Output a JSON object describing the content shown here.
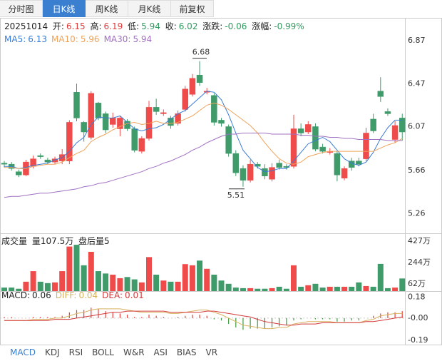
{
  "tabs": [
    {
      "label": "分时图"
    },
    {
      "label": "日K线",
      "selected": true
    },
    {
      "label": "周K线"
    },
    {
      "label": "月K线"
    },
    {
      "label": "前复权"
    }
  ],
  "indicator_tabs": [
    {
      "label": "MACD",
      "selected": true
    },
    {
      "label": "KDJ"
    },
    {
      "label": "RSI"
    },
    {
      "label": "BOLL"
    },
    {
      "label": "W&R"
    },
    {
      "label": "ASI"
    },
    {
      "label": "BIAS"
    },
    {
      "label": "VR"
    }
  ],
  "chart_data": [
    {
      "type": "candlestick",
      "date": "20251014",
      "info_labels": [
        "开:",
        "高:",
        "低:",
        "收:",
        "涨跌:",
        "涨幅:"
      ],
      "change": -0.06,
      "change_pct": {
        "value": -0.99,
        "label": "-0.99%"
      },
      "up_color": "#f04b4b",
      "down_color": "#3f9b6a",
      "categories": [
        null,
        null,
        null,
        null,
        null,
        null,
        null,
        null,
        null,
        null,
        null,
        null,
        null,
        null,
        null,
        null,
        null,
        null,
        null,
        null,
        null,
        null,
        null,
        null,
        null,
        null,
        null,
        null,
        null,
        null,
        null,
        null,
        null,
        null,
        null,
        null,
        null,
        null,
        null,
        null,
        null,
        null,
        null,
        null,
        null,
        null,
        null,
        null,
        null,
        null,
        null,
        null,
        null,
        null,
        null,
        null
      ],
      "open": [
        5.73,
        5.72,
        5.65,
        5.62,
        5.7,
        5.8,
        5.76,
        5.74,
        5.75,
        5.75,
        6.39,
        6.11,
        5.97,
        6.29,
        6.19,
        6.09,
        6.05,
        6.12,
        6.05,
        5.84,
        5.96,
        6.25,
        6.19,
        6.15,
        6.1,
        6.23,
        6.37,
        6.55,
        6.39,
        6.36,
        6.13,
        6.07,
        5.82,
        5.68,
        5.57,
        5.72,
        5.68,
        5.58,
        5.73,
        5.7,
        5.7,
        6.05,
        6.02,
        6.07,
        5.88,
        5.83,
        5.82,
        5.59,
        5.75,
        5.75,
        5.77,
        6.14,
        6.4,
        6.21,
        5.95,
        6.15
      ],
      "high": [
        5.75,
        5.74,
        5.67,
        5.76,
        5.8,
        5.82,
        5.78,
        5.79,
        5.86,
        6.13,
        6.47,
        6.12,
        6.4,
        6.3,
        6.21,
        6.2,
        6.17,
        6.14,
        6.07,
        5.98,
        6.31,
        6.33,
        6.23,
        6.17,
        6.22,
        6.45,
        6.56,
        6.68,
        6.43,
        6.38,
        6.15,
        6.09,
        5.85,
        5.71,
        5.76,
        5.74,
        5.72,
        5.73,
        5.76,
        5.72,
        6.18,
        6.1,
        6.12,
        6.1,
        5.91,
        5.87,
        5.84,
        5.7,
        5.78,
        5.78,
        6.06,
        6.19,
        6.53,
        6.24,
        6.12,
        6.19
      ],
      "low": [
        5.69,
        5.66,
        5.6,
        5.61,
        5.68,
        5.77,
        5.72,
        5.72,
        5.72,
        5.72,
        6.12,
        5.93,
        5.95,
        6.13,
        6.01,
        6.06,
        5.98,
        6.03,
        5.83,
        5.82,
        5.94,
        6.18,
        6.17,
        6.05,
        6.08,
        6.21,
        6.35,
        6.45,
        6.37,
        6.08,
        6.07,
        5.79,
        5.61,
        5.51,
        5.55,
        5.68,
        5.58,
        5.56,
        5.67,
        5.67,
        5.68,
        5.98,
        6.0,
        5.84,
        5.82,
        5.81,
        5.56,
        5.57,
        5.66,
        5.7,
        5.75,
        6.01,
        6.3,
        6.17,
        5.92,
        5.94
      ],
      "close": [
        5.72,
        5.68,
        5.62,
        5.74,
        5.77,
        5.79,
        5.74,
        5.77,
        5.81,
        6.11,
        6.15,
        6.02,
        6.38,
        6.15,
        6.04,
        6.15,
        6.15,
        6.05,
        5.85,
        5.96,
        6.25,
        6.21,
        6.2,
        6.08,
        6.19,
        6.42,
        6.52,
        6.48,
        6.4,
        6.11,
        6.1,
        5.82,
        5.64,
        5.57,
        5.72,
        5.7,
        5.61,
        5.69,
        5.69,
        5.69,
        6.05,
        6.01,
        6.09,
        5.86,
        5.84,
        5.84,
        5.62,
        5.68,
        5.69,
        5.72,
        6.01,
        6.03,
        6.35,
        6.19,
        6.08,
        6.02
      ],
      "series": [
        {
          "name": "MA5:",
          "color": "#3a7bd5",
          "values": [
            5.7,
            5.7,
            5.68,
            5.69,
            5.71,
            5.72,
            5.73,
            5.76,
            5.78,
            5.84,
            5.92,
            5.97,
            6.09,
            6.16,
            6.15,
            6.15,
            6.17,
            6.11,
            6.05,
            6.03,
            6.05,
            6.06,
            6.09,
            6.14,
            6.19,
            6.22,
            6.28,
            6.34,
            6.4,
            6.39,
            6.32,
            6.18,
            6.01,
            5.85,
            5.77,
            5.69,
            5.65,
            5.66,
            5.68,
            5.68,
            5.75,
            5.83,
            5.91,
            5.94,
            5.97,
            5.93,
            5.85,
            5.77,
            5.73,
            5.71,
            5.74,
            5.83,
            5.96,
            6.06,
            6.13,
            6.13
          ]
        },
        {
          "name": "MA10:",
          "color": "#efa35a",
          "values": [
            5.69,
            5.69,
            5.68,
            5.68,
            5.7,
            5.71,
            5.72,
            5.72,
            5.74,
            5.78,
            5.82,
            5.85,
            5.93,
            5.97,
            6.0,
            6.04,
            6.07,
            6.1,
            6.11,
            6.09,
            6.1,
            6.12,
            6.1,
            6.1,
            6.11,
            6.14,
            6.17,
            6.22,
            6.27,
            6.29,
            6.27,
            6.23,
            6.18,
            6.13,
            6.08,
            6.01,
            5.92,
            5.84,
            5.77,
            5.73,
            5.72,
            5.74,
            5.79,
            5.81,
            5.83,
            5.84,
            5.84,
            5.84,
            5.84,
            5.84,
            5.84,
            5.84,
            5.87,
            5.9,
            5.92,
            5.96
          ]
        },
        {
          "name": "MA30:",
          "color": "#a070c2",
          "values": [
            5.41,
            5.42,
            5.42,
            5.43,
            5.44,
            5.45,
            5.45,
            5.46,
            5.47,
            5.48,
            5.49,
            5.51,
            5.52,
            5.54,
            5.55,
            5.57,
            5.59,
            5.61,
            5.63,
            5.65,
            5.68,
            5.7,
            5.73,
            5.75,
            5.78,
            5.81,
            5.85,
            5.88,
            5.92,
            5.95,
            5.98,
            6.0,
            6.0,
            6.01,
            6.01,
            6.01,
            6.01,
            6.0,
            6.0,
            6.0,
            6.0,
            5.99,
            5.99,
            5.98,
            5.98,
            5.97,
            5.97,
            5.96,
            5.96,
            5.95,
            5.95,
            5.95,
            5.95,
            5.94,
            5.94,
            5.94
          ]
        }
      ],
      "ylim": [
        5.09,
        6.95
      ],
      "yticks": [
        6.87,
        6.47,
        6.07,
        5.66,
        5.26
      ],
      "grid": false
    },
    {
      "type": "volume",
      "title": "成交量",
      "volume_text": "量107.5万",
      "after_hours_text": "盘后量5",
      "values": [
        30,
        30,
        20,
        80,
        170,
        80,
        68,
        74,
        170,
        380,
        395,
        220,
        335,
        170,
        150,
        140,
        110,
        120,
        100,
        74,
        290,
        140,
        90,
        80,
        80,
        230,
        220,
        260,
        190,
        140,
        90,
        62,
        30,
        25,
        25,
        20,
        20,
        25,
        37,
        20,
        220,
        37,
        50,
        62,
        30,
        37,
        37,
        37,
        37,
        74,
        43,
        37,
        232,
        25,
        30,
        107.5
      ],
      "ylim": [
        0,
        487
      ],
      "yticks": [
        {
          "value": 427,
          "label": "427万"
        },
        {
          "value": 244,
          "label": "244万"
        },
        {
          "value": 62,
          "label": "62万"
        }
      ]
    },
    {
      "type": "macd",
      "up_color": "#e8403c",
      "down_color": "#3f9b3f",
      "histogram": {
        "name": "MACD:",
        "values": [
          0.01,
          0.01,
          0.0,
          0.0,
          0.01,
          0.01,
          0.01,
          0.01,
          0.02,
          0.05,
          0.07,
          0.07,
          0.09,
          0.08,
          0.06,
          0.05,
          0.04,
          0.03,
          0.01,
          0.01,
          0.03,
          0.02,
          0.01,
          0.0,
          0.01,
          0.02,
          0.03,
          0.03,
          0.02,
          -0.01,
          -0.02,
          -0.05,
          -0.08,
          -0.1,
          -0.09,
          -0.09,
          -0.09,
          -0.08,
          -0.07,
          -0.06,
          -0.02,
          -0.01,
          0.0,
          -0.01,
          -0.01,
          -0.01,
          -0.03,
          -0.03,
          -0.02,
          -0.02,
          0.0,
          0.02,
          0.04,
          0.05,
          0.05,
          0.06
        ]
      },
      "series": [
        {
          "name": "DIFF:",
          "color": "#d8b15e",
          "values": [
            -0.02,
            -0.02,
            -0.02,
            -0.02,
            -0.01,
            -0.01,
            -0.01,
            0.0,
            0.0,
            0.02,
            0.04,
            0.05,
            0.07,
            0.08,
            0.08,
            0.08,
            0.08,
            0.07,
            0.06,
            0.05,
            0.05,
            0.05,
            0.05,
            0.04,
            0.04,
            0.05,
            0.06,
            0.07,
            0.07,
            0.05,
            0.03,
            0.0,
            -0.03,
            -0.06,
            -0.07,
            -0.08,
            -0.09,
            -0.09,
            -0.08,
            -0.08,
            -0.05,
            -0.04,
            -0.03,
            -0.03,
            -0.03,
            -0.03,
            -0.04,
            -0.04,
            -0.04,
            -0.04,
            -0.02,
            -0.01,
            0.02,
            0.03,
            0.04,
            0.04
          ]
        },
        {
          "name": "DEA:",
          "color": "#d33a3a",
          "values": [
            -0.02,
            -0.02,
            -0.02,
            -0.02,
            -0.02,
            -0.02,
            -0.02,
            -0.01,
            -0.01,
            -0.01,
            0.0,
            0.01,
            0.02,
            0.03,
            0.04,
            0.05,
            0.05,
            0.06,
            0.06,
            0.06,
            0.06,
            0.06,
            0.06,
            0.05,
            0.05,
            0.05,
            0.05,
            0.05,
            0.06,
            0.06,
            0.05,
            0.04,
            0.03,
            0.02,
            0.01,
            -0.01,
            -0.03,
            -0.04,
            -0.05,
            -0.06,
            -0.06,
            -0.05,
            -0.05,
            -0.05,
            -0.04,
            -0.04,
            -0.04,
            -0.04,
            -0.04,
            -0.04,
            -0.03,
            -0.03,
            -0.02,
            -0.01,
            0.0,
            0.01
          ]
        }
      ],
      "ylim": [
        -0.27,
        0.22
      ],
      "yticks": [
        0.18,
        {
          "value": 0,
          "label": "-0.00"
        },
        -0.19
      ]
    }
  ]
}
